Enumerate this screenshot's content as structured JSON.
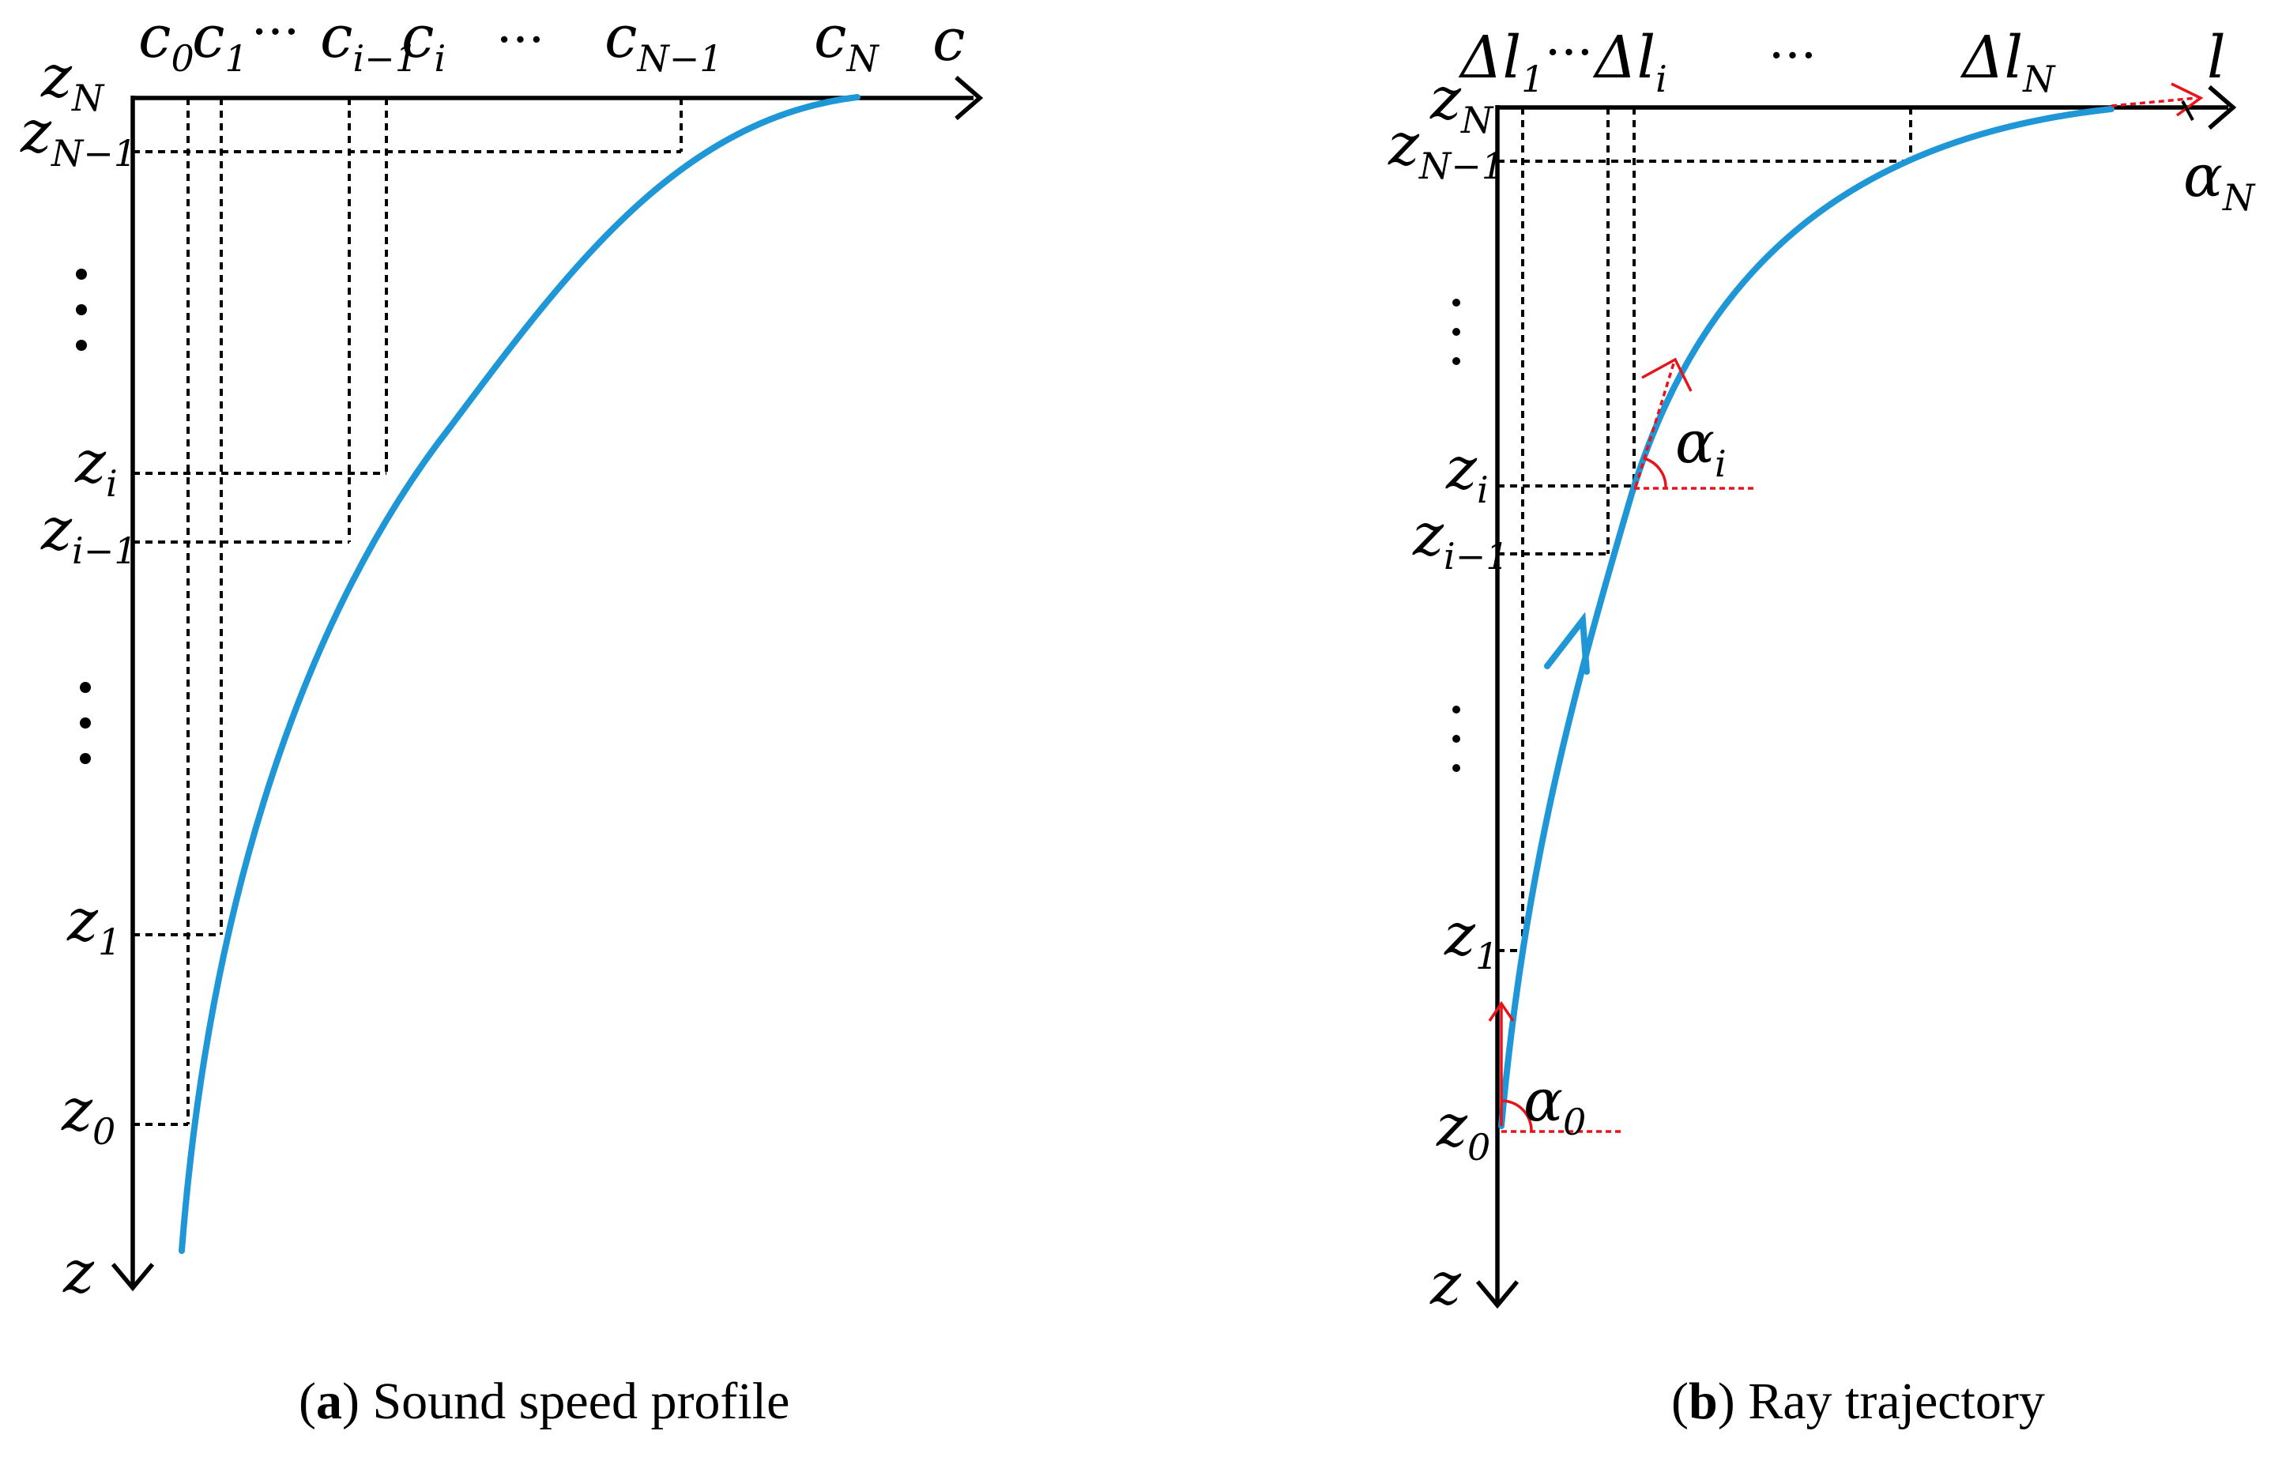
{
  "panel_a": {
    "caption_letter": "a",
    "caption_text": " Sound speed profile",
    "axis_h_label": "c",
    "axis_v_label": "z",
    "c_labels": [
      {
        "base": "c",
        "sub": "0"
      },
      {
        "base": "c",
        "sub": "1"
      },
      {
        "base": "c",
        "sub": "i−1"
      },
      {
        "base": "c",
        "sub": "i"
      },
      {
        "base": "c",
        "sub": "N−1"
      },
      {
        "base": "c",
        "sub": "N"
      }
    ],
    "z_labels": [
      {
        "base": "z",
        "sub": "N"
      },
      {
        "base": "z",
        "sub": "N−1"
      },
      {
        "base": "z",
        "sub": "i"
      },
      {
        "base": "z",
        "sub": "i−1"
      },
      {
        "base": "z",
        "sub": "1"
      },
      {
        "base": "z",
        "sub": "0"
      }
    ],
    "ellipsis": "···"
  },
  "panel_b": {
    "caption_letter": "b",
    "caption_text": " Ray trajectory",
    "axis_h_label": "l",
    "axis_v_label": "z",
    "l_labels": [
      {
        "base": "Δl",
        "sub": "1"
      },
      {
        "base": "Δl",
        "sub": "i"
      },
      {
        "base": "Δl",
        "sub": "N"
      }
    ],
    "z_labels": [
      {
        "base": "z",
        "sub": "N"
      },
      {
        "base": "z",
        "sub": "N−1"
      },
      {
        "base": "z",
        "sub": "i"
      },
      {
        "base": "z",
        "sub": "i−1"
      },
      {
        "base": "z",
        "sub": "1"
      },
      {
        "base": "z",
        "sub": "0"
      }
    ],
    "angles": [
      {
        "base": "α",
        "sub": "N"
      },
      {
        "base": "α",
        "sub": "i"
      },
      {
        "base": "α",
        "sub": "0"
      }
    ],
    "ellipsis": "···"
  },
  "colors": {
    "curve": "#1f97d6",
    "angle": "#e8141b",
    "axis": "#000000"
  }
}
